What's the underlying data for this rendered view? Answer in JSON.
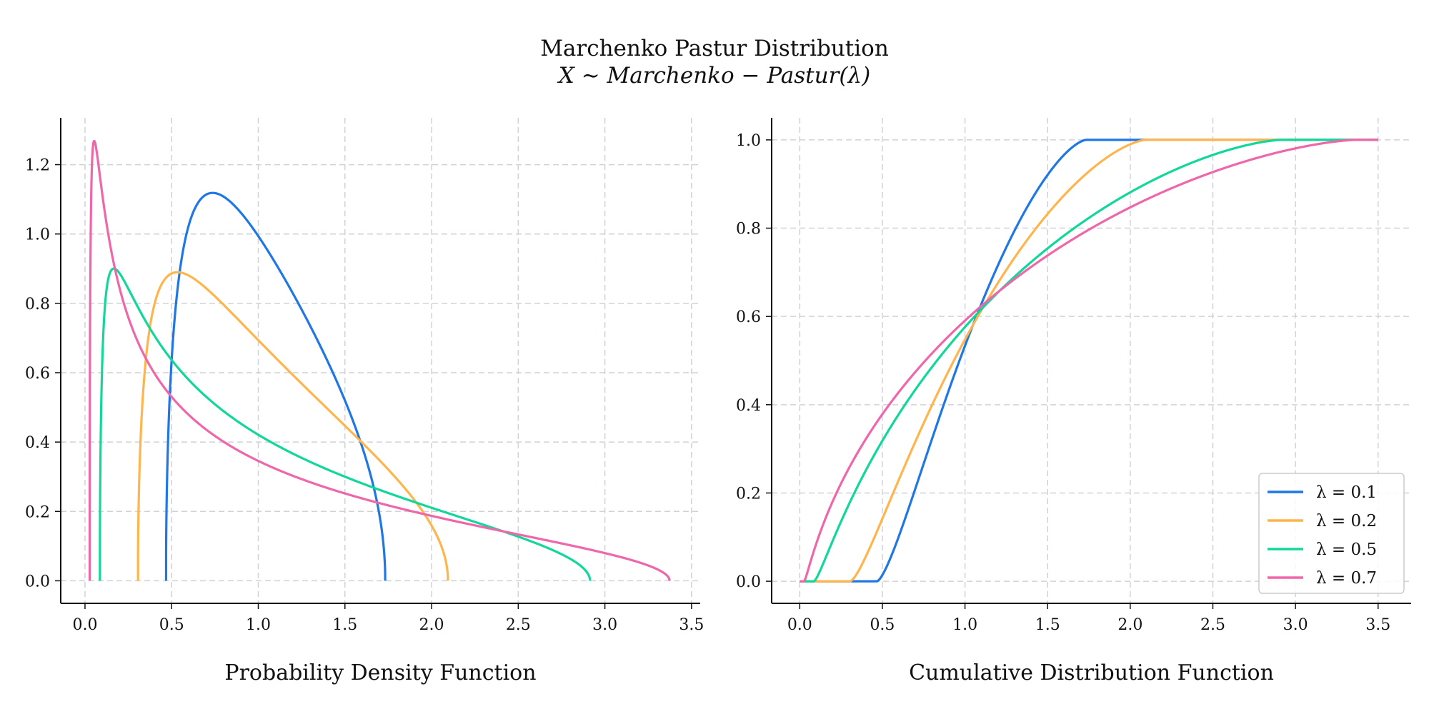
{
  "figure": {
    "title": "Marchenko Pastur Distribution",
    "subtitle": "X ∼ Marchenko − Pastur(λ)"
  },
  "colors": {
    "lambda_0_1": "#1f77e6",
    "lambda_0_2": "#ffb54c",
    "lambda_0_5": "#11d89a",
    "lambda_0_7": "#ef66aa",
    "grid": "#cfd2d8",
    "axis": "#111111"
  },
  "chart_data": [
    {
      "type": "line",
      "xlabel": "Probability Density Function",
      "ylabel": "",
      "xlim": [
        -0.14,
        3.55
      ],
      "ylim": [
        -0.065,
        1.335
      ],
      "xticks": [
        "0.0",
        "0.5",
        "1.0",
        "1.5",
        "2.0",
        "2.5",
        "3.0",
        "3.5"
      ],
      "yticks": [
        "0.0",
        "0.2",
        "0.4",
        "0.6",
        "0.8",
        "1.0",
        "1.2"
      ],
      "grid": true,
      "legend": "none",
      "series": [
        {
          "name": "λ = 0.1",
          "lambda": 0.1,
          "x_min": 0.468,
          "x_max": 1.732,
          "peak_x": 0.74,
          "peak_y": 1.12
        },
        {
          "name": "λ = 0.2",
          "lambda": 0.2,
          "x_min": 0.306,
          "x_max": 2.094,
          "peak_x": 0.54,
          "peak_y": 0.89
        },
        {
          "name": "λ = 0.5",
          "lambda": 0.5,
          "x_min": 0.086,
          "x_max": 2.914,
          "peak_x": 0.17,
          "peak_y": 0.9
        },
        {
          "name": "λ = 0.7",
          "lambda": 0.7,
          "x_min": 0.027,
          "x_max": 3.373,
          "peak_x": 0.05,
          "peak_y": 1.27
        }
      ]
    },
    {
      "type": "line",
      "xlabel": "Cumulative Distribution Function",
      "ylabel": "",
      "xlim": [
        -0.17,
        3.7
      ],
      "ylim": [
        -0.05,
        1.05
      ],
      "xticks": [
        "0.0",
        "0.5",
        "1.0",
        "1.5",
        "2.0",
        "2.5",
        "3.0",
        "3.5"
      ],
      "yticks": [
        "0.0",
        "0.2",
        "0.4",
        "0.6",
        "0.8",
        "1.0"
      ],
      "grid": true,
      "legend": "lower right",
      "x_range": [
        0,
        3.5
      ],
      "series": [
        {
          "name": "λ = 0.1",
          "lambda": 0.1
        },
        {
          "name": "λ = 0.2",
          "lambda": 0.2
        },
        {
          "name": "λ = 0.5",
          "lambda": 0.5
        },
        {
          "name": "λ = 0.7",
          "lambda": 0.7
        }
      ]
    }
  ]
}
